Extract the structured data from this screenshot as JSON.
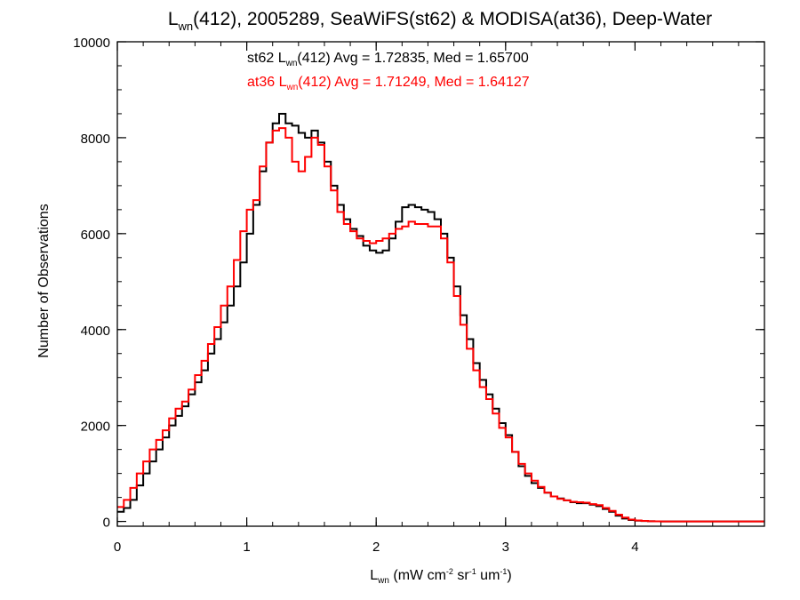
{
  "chart_data": {
    "type": "line",
    "title": {
      "prefix": "L",
      "prefix_sub": "wn",
      "rest": "(412), 2005289, SeaWiFS(st62) & MODISA(at36), Deep-Water"
    },
    "xlabel": {
      "prefix": "L",
      "prefix_sub": "wn",
      "parts": [
        {
          "text": " (mW cm",
          "sup": "-2"
        },
        {
          "text": " sr",
          "sup": "-1"
        },
        {
          "text": " um",
          "sup": "-1"
        },
        {
          "text": ")",
          "sup": ""
        }
      ]
    },
    "ylabel": "Number of Observations",
    "xlim": [
      0,
      5
    ],
    "ylim": [
      -100,
      10000
    ],
    "xticks": [
      0,
      1,
      2,
      3,
      4
    ],
    "yticks": [
      0,
      2000,
      4000,
      6000,
      8000,
      10000
    ],
    "legend_position": "top-center",
    "series": [
      {
        "name": "st62",
        "color": "#000000",
        "legend": {
          "prefix": "st62 L",
          "sub": "wn",
          "rest": "(412) Avg = 1.72835, Med = 1.65700"
        },
        "x": [
          0.0,
          0.05,
          0.1,
          0.15,
          0.2,
          0.25,
          0.3,
          0.35,
          0.4,
          0.45,
          0.5,
          0.55,
          0.6,
          0.65,
          0.7,
          0.75,
          0.8,
          0.85,
          0.9,
          0.95,
          1.0,
          1.05,
          1.1,
          1.15,
          1.2,
          1.25,
          1.3,
          1.35,
          1.4,
          1.45,
          1.5,
          1.55,
          1.6,
          1.65,
          1.7,
          1.75,
          1.8,
          1.85,
          1.9,
          1.95,
          2.0,
          2.05,
          2.1,
          2.15,
          2.2,
          2.25,
          2.3,
          2.35,
          2.4,
          2.45,
          2.5,
          2.55,
          2.6,
          2.65,
          2.7,
          2.75,
          2.8,
          2.85,
          2.9,
          2.95,
          3.0,
          3.05,
          3.1,
          3.15,
          3.2,
          3.25,
          3.3,
          3.35,
          3.4,
          3.45,
          3.5,
          3.55,
          3.6,
          3.65,
          3.7,
          3.75,
          3.8,
          3.85,
          3.9,
          3.95,
          4.0,
          4.05,
          4.1,
          4.15,
          4.2,
          4.25,
          4.3,
          4.35,
          4.4,
          4.45,
          4.5,
          4.55,
          4.6,
          4.65,
          4.7,
          4.75,
          4.8,
          4.85,
          4.9,
          4.95
        ],
        "values": [
          200,
          280,
          450,
          750,
          1000,
          1250,
          1500,
          1750,
          2000,
          2200,
          2400,
          2650,
          2900,
          3150,
          3500,
          3800,
          4150,
          4500,
          4900,
          5400,
          6000,
          6600,
          7300,
          7900,
          8300,
          8500,
          8300,
          8250,
          8100,
          8000,
          8150,
          7900,
          7500,
          7000,
          6600,
          6300,
          6100,
          5950,
          5750,
          5650,
          5600,
          5650,
          5900,
          6250,
          6550,
          6600,
          6550,
          6500,
          6450,
          6300,
          6000,
          5500,
          4900,
          4300,
          3800,
          3300,
          2950,
          2650,
          2350,
          2050,
          1800,
          1450,
          1150,
          950,
          800,
          700,
          600,
          520,
          480,
          440,
          400,
          380,
          380,
          350,
          320,
          260,
          200,
          120,
          60,
          30,
          15,
          8,
          4,
          2,
          0,
          0,
          0,
          0,
          0,
          0,
          0,
          0,
          0,
          0,
          0,
          0,
          0,
          0,
          0,
          0
        ]
      },
      {
        "name": "at36",
        "color": "#ff0000",
        "legend": {
          "prefix": "at36 L",
          "sub": "wn",
          "rest": "(412) Avg = 1.71249, Med = 1.64127"
        },
        "x": [
          0.0,
          0.05,
          0.1,
          0.15,
          0.2,
          0.25,
          0.3,
          0.35,
          0.4,
          0.45,
          0.5,
          0.55,
          0.6,
          0.65,
          0.7,
          0.75,
          0.8,
          0.85,
          0.9,
          0.95,
          1.0,
          1.05,
          1.1,
          1.15,
          1.2,
          1.25,
          1.3,
          1.35,
          1.4,
          1.45,
          1.5,
          1.55,
          1.6,
          1.65,
          1.7,
          1.75,
          1.8,
          1.85,
          1.9,
          1.95,
          2.0,
          2.05,
          2.1,
          2.15,
          2.2,
          2.25,
          2.3,
          2.35,
          2.4,
          2.45,
          2.5,
          2.55,
          2.6,
          2.65,
          2.7,
          2.75,
          2.8,
          2.85,
          2.9,
          2.95,
          3.0,
          3.05,
          3.1,
          3.15,
          3.2,
          3.25,
          3.3,
          3.35,
          3.4,
          3.45,
          3.5,
          3.55,
          3.6,
          3.65,
          3.7,
          3.75,
          3.8,
          3.85,
          3.9,
          3.95,
          4.0,
          4.05,
          4.1,
          4.15,
          4.2,
          4.25,
          4.3,
          4.35,
          4.4,
          4.45,
          4.5,
          4.55,
          4.6,
          4.65,
          4.7,
          4.75,
          4.8,
          4.85,
          4.9,
          4.95
        ],
        "values": [
          300,
          450,
          700,
          1000,
          1250,
          1500,
          1700,
          1900,
          2150,
          2350,
          2500,
          2750,
          3050,
          3350,
          3700,
          4050,
          4500,
          4900,
          5450,
          6050,
          6500,
          6700,
          7400,
          7900,
          8150,
          8200,
          8000,
          7500,
          7300,
          7600,
          8000,
          7850,
          7400,
          6900,
          6450,
          6200,
          6050,
          5900,
          5850,
          5800,
          5850,
          5900,
          6000,
          6100,
          6150,
          6250,
          6200,
          6200,
          6150,
          6150,
          5900,
          5400,
          4700,
          4100,
          3600,
          3150,
          2800,
          2550,
          2250,
          1950,
          1750,
          1450,
          1200,
          1000,
          850,
          720,
          600,
          520,
          470,
          440,
          410,
          400,
          390,
          360,
          340,
          280,
          220,
          140,
          80,
          40,
          20,
          10,
          5,
          2,
          0,
          0,
          0,
          0,
          0,
          0,
          0,
          0,
          0,
          0,
          0,
          0,
          0,
          0,
          0,
          0
        ]
      }
    ]
  }
}
